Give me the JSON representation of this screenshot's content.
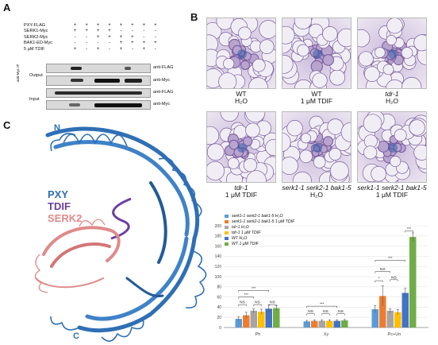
{
  "panels": {
    "a": "A",
    "b": "B",
    "c": "C"
  },
  "blot": {
    "rows": [
      {
        "label": "PXY-FLAG",
        "symbols": [
          "+",
          "+",
          "+",
          "+",
          "+",
          "+",
          "+",
          "+"
        ]
      },
      {
        "label": "SERK1-Myc",
        "symbols": [
          "+",
          "+",
          "+",
          "+",
          "-",
          "-",
          "-",
          "-"
        ]
      },
      {
        "label": "SERK2-Myc",
        "symbols": [
          "-",
          "-",
          "+",
          "+",
          "+",
          "+",
          "-",
          "-"
        ]
      },
      {
        "label": "BAK1-ED-Myc",
        "symbols": [
          "-",
          "-",
          "-",
          "-",
          "+",
          "+",
          "+",
          "+"
        ]
      },
      {
        "label": "5 µM TDIF",
        "symbols": [
          "+",
          "-",
          "+",
          "-",
          "+",
          "-",
          "+",
          "-"
        ]
      }
    ],
    "output_label": "Output",
    "input_label": "Input",
    "ip_label": "anti-Myc IP",
    "antibodies": [
      "anti-FLAG",
      "anti-Myc",
      "anti-FLAG",
      "anti-Myc"
    ]
  },
  "micrographs": [
    {
      "line1": "WT",
      "line2": "H₂O",
      "italic": false
    },
    {
      "line1": "WT",
      "line2": "1 μM TDIF",
      "italic": false
    },
    {
      "line1": "tdr-1",
      "line2": "H₂O",
      "italic": true
    },
    {
      "line1": "tdr-1",
      "line2": "1 μM TDIF",
      "italic": true
    },
    {
      "line1": "serk1-1 serk2-1 bak1-5",
      "line2": "H₂O",
      "italic": true
    },
    {
      "line1": "serk1-1 serk2-1 bak1-5",
      "line2": "1 μM TDIF",
      "italic": true
    }
  ],
  "structure": {
    "n_label": "N",
    "c_label": "C",
    "legend": [
      "PXY",
      "TDIF",
      "SERK2"
    ],
    "colors": {
      "pxy": "#2e6fb5",
      "tdif": "#6b3fa0",
      "serk2": "#e08a8a"
    }
  },
  "chart_data": {
    "type": "bar",
    "categories": [
      "Ph",
      "Xy",
      "Pc+Un"
    ],
    "ylim": [
      0,
      200
    ],
    "yticks": [
      0,
      20,
      40,
      60,
      80,
      100,
      120,
      140,
      160,
      180,
      200
    ],
    "series": [
      {
        "name": "serk1-1 serk2-1 bak1-5  H₂O",
        "color": "#5b9bd5",
        "values": [
          17,
          12,
          36
        ],
        "err": [
          4,
          2,
          7
        ]
      },
      {
        "name": "serk1-1 serk2-1 bak1-5  1 μM TDIF",
        "color": "#ed7d31",
        "values": [
          24,
          13,
          62
        ],
        "err": [
          6,
          2,
          20
        ]
      },
      {
        "name": "tdr-1 H₂O",
        "color": "#a5a5a5",
        "values": [
          33,
          13,
          33
        ],
        "err": [
          4,
          2,
          4
        ]
      },
      {
        "name": "tdr-1 1 μM TDIF",
        "color": "#ffc000",
        "values": [
          31,
          13,
          30
        ],
        "err": [
          5,
          2,
          5
        ]
      },
      {
        "name": "WT H₂O",
        "color": "#4472c4",
        "values": [
          37,
          13,
          68
        ],
        "err": [
          7,
          2,
          9
        ]
      },
      {
        "name": "WT 1 μM TDIF",
        "color": "#70ad47",
        "values": [
          38,
          14,
          178
        ],
        "err": [
          5,
          2,
          8
        ]
      }
    ],
    "annotations": [
      "NS",
      "***",
      "*"
    ]
  }
}
